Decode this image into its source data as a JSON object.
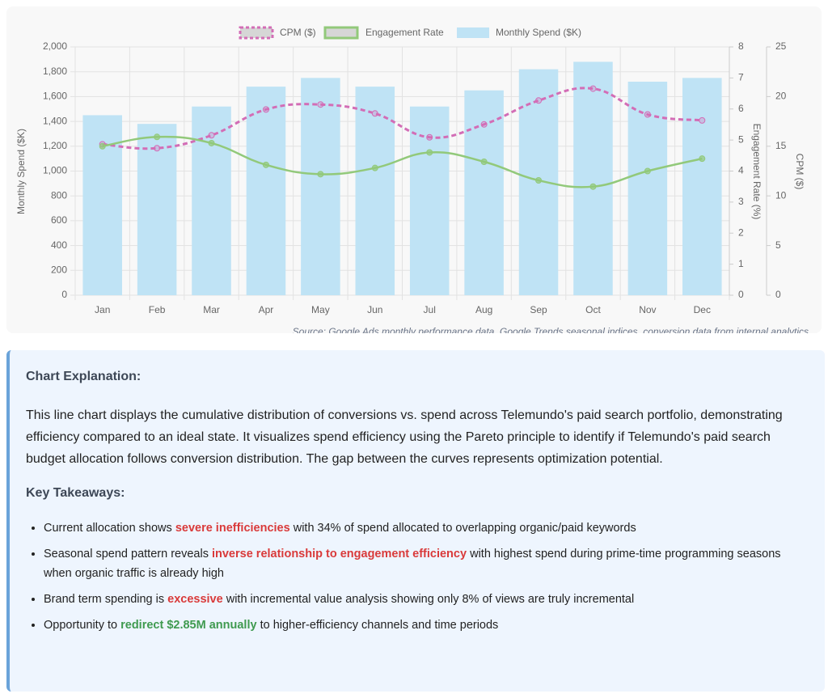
{
  "chart_data": {
    "type": "combo",
    "categories": [
      "Jan",
      "Feb",
      "Mar",
      "Apr",
      "May",
      "Jun",
      "Jul",
      "Aug",
      "Sep",
      "Oct",
      "Nov",
      "Dec"
    ],
    "series": [
      {
        "name": "CPM ($)",
        "type": "line",
        "axis": "y3",
        "color": "#d36db6",
        "dashed": true,
        "values": [
          15.2,
          14.8,
          16.1,
          18.7,
          19.2,
          18.3,
          15.9,
          17.2,
          19.6,
          20.8,
          18.2,
          17.6
        ]
      },
      {
        "name": "Engagement Rate",
        "type": "line",
        "axis": "y2",
        "color": "#92c97a",
        "values": [
          4.8,
          5.1,
          4.9,
          4.2,
          3.9,
          4.1,
          4.6,
          4.3,
          3.7,
          3.5,
          4.0,
          4.4
        ]
      },
      {
        "name": "Monthly Spend ($K)",
        "type": "bar",
        "axis": "y",
        "color": "#bfe3f5",
        "values": [
          1450,
          1380,
          1520,
          1680,
          1750,
          1680,
          1520,
          1650,
          1820,
          1880,
          1720,
          1750
        ]
      }
    ],
    "ylabel": "Monthly Spend ($K)",
    "ylim": [
      0,
      2000
    ],
    "yticks": [
      0,
      200,
      400,
      600,
      800,
      {
        "value": 1000,
        "label": "1,000"
      },
      {
        "value": 1200,
        "label": "1,200"
      },
      {
        "value": 1400,
        "label": "1,400"
      },
      {
        "value": 1600,
        "label": "1,600"
      },
      {
        "value": 1800,
        "label": "1,800"
      },
      {
        "value": 2000,
        "label": "2,000"
      }
    ],
    "y2label": "Engagement Rate (%)",
    "y2lim": [
      0,
      8
    ],
    "y2ticks": [
      0,
      1,
      2,
      3,
      4,
      5,
      6,
      7,
      8
    ],
    "y3label": "CPM ($)",
    "y3lim": [
      0,
      25
    ],
    "y3ticks": [
      0,
      5,
      10,
      15,
      20,
      25
    ],
    "grid": true,
    "source": "Source: Google Ads monthly performance data, Google Trends seasonal indices, conversion data from internal analytics"
  },
  "explanation": {
    "title": "Chart Explanation:",
    "text": "This line chart displays the cumulative distribution of conversions vs. spend across Telemundo's paid search portfolio, demonstrating efficiency compared to an ideal state. It visualizes spend efficiency using the Pareto principle to identify if Telemundo's paid search budget allocation follows conversion distribution. The gap between the curves represents optimization potential.",
    "takeaways_title": "Key Takeaways:",
    "takeaways": [
      [
        {
          "text": "Current allocation shows "
        },
        {
          "text": "severe inefficiencies",
          "color": "#d93a3a"
        },
        {
          "text": " with 34% of spend allocated to overlapping organic/paid keywords"
        }
      ],
      [
        {
          "text": "Seasonal spend pattern reveals "
        },
        {
          "text": "inverse relationship to engagement efficiency",
          "color": "#d93a3a"
        },
        {
          "text": " with highest spend during prime-time programming seasons when organic traffic is already high"
        }
      ],
      [
        {
          "text": "Brand term spending is "
        },
        {
          "text": "excessive",
          "color": "#d93a3a"
        },
        {
          "text": " with incremental value analysis showing only 8% of views are truly incremental"
        }
      ],
      [
        {
          "text": "Opportunity to "
        },
        {
          "text": "redirect $2.85M annually",
          "color": "#3f9a4f"
        },
        {
          "text": " to higher-efficiency channels and time periods"
        }
      ]
    ]
  }
}
